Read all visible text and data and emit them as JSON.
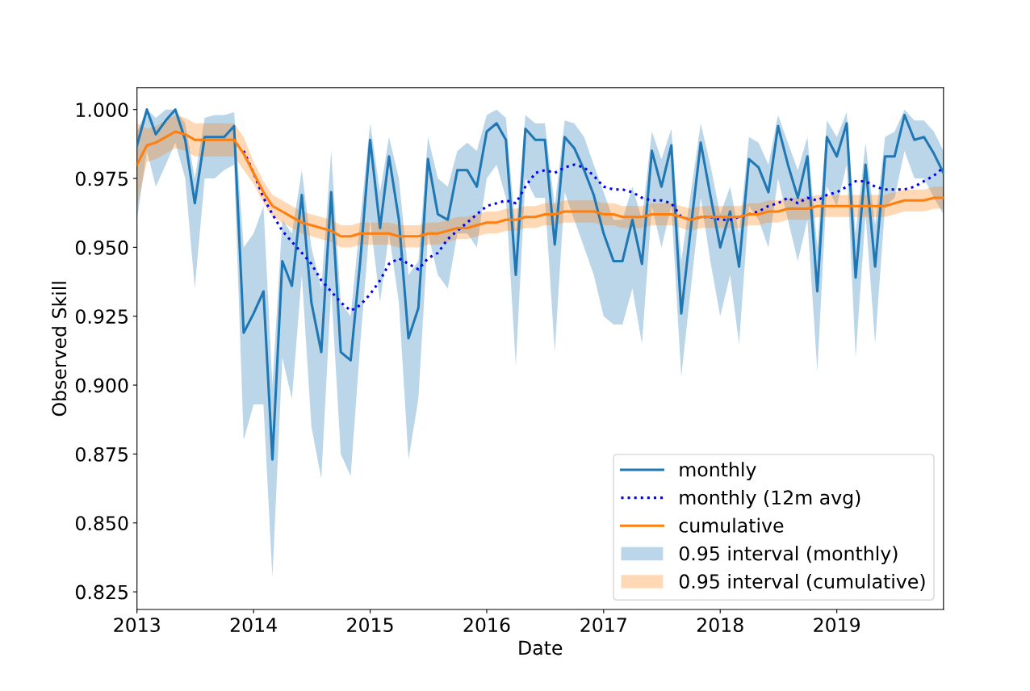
{
  "chart_data": {
    "type": "line",
    "xlabel": "Date",
    "ylabel": "Observed Skill",
    "annotations": [
      "0.95 interval (monthly)",
      "0.95 interval (cumulative)"
    ],
    "x": [
      "2013-01",
      "2013-02",
      "2013-03",
      "2013-04",
      "2013-05",
      "2013-06",
      "2013-07",
      "2013-08",
      "2013-09",
      "2013-10",
      "2013-11",
      "2013-12",
      "2014-01",
      "2014-02",
      "2014-03",
      "2014-04",
      "2014-05",
      "2014-06",
      "2014-07",
      "2014-08",
      "2014-09",
      "2014-10",
      "2014-11",
      "2014-12",
      "2015-01",
      "2015-02",
      "2015-03",
      "2015-04",
      "2015-05",
      "2015-06",
      "2015-07",
      "2015-08",
      "2015-09",
      "2015-10",
      "2015-11",
      "2015-12",
      "2016-01",
      "2016-02",
      "2016-03",
      "2016-04",
      "2016-05",
      "2016-06",
      "2016-07",
      "2016-08",
      "2016-09",
      "2016-10",
      "2016-11",
      "2016-12",
      "2017-01",
      "2017-02",
      "2017-03",
      "2017-04",
      "2017-05",
      "2017-06",
      "2017-07",
      "2017-08",
      "2017-09",
      "2017-10",
      "2017-11",
      "2017-12",
      "2018-01",
      "2018-02",
      "2018-03",
      "2018-04",
      "2018-05",
      "2018-06",
      "2018-07",
      "2018-08",
      "2018-09",
      "2018-10",
      "2018-11",
      "2018-12",
      "2019-01",
      "2019-02",
      "2019-03",
      "2019-04",
      "2019-05",
      "2019-06",
      "2019-07",
      "2019-08",
      "2019-09",
      "2019-10",
      "2019-11",
      "2019-12"
    ],
    "series": [
      {
        "name": "monthly",
        "color": "#1f77b4",
        "line_style": "solid",
        "values": [
          0.987,
          1.0,
          0.991,
          0.996,
          1.0,
          0.989,
          0.966,
          0.99,
          0.99,
          0.99,
          0.994,
          0.919,
          0.926,
          0.934,
          0.873,
          0.945,
          0.936,
          0.969,
          0.93,
          0.912,
          0.97,
          0.912,
          0.909,
          0.945,
          0.989,
          0.957,
          0.983,
          0.96,
          0.917,
          0.928,
          0.982,
          0.962,
          0.96,
          0.978,
          0.978,
          0.972,
          0.992,
          0.995,
          0.989,
          0.94,
          0.993,
          0.989,
          0.989,
          0.951,
          0.99,
          0.986,
          0.978,
          0.969,
          0.955,
          0.945,
          0.945,
          0.96,
          0.944,
          0.985,
          0.972,
          0.987,
          0.926,
          0.957,
          0.988,
          0.969,
          0.95,
          0.963,
          0.943,
          0.982,
          0.979,
          0.97,
          0.994,
          0.98,
          0.968,
          0.983,
          0.934,
          0.99,
          0.983,
          0.995,
          0.939,
          0.98,
          0.943,
          0.983,
          0.983,
          0.998,
          0.989,
          0.99,
          0.984,
          0.977
        ],
        "lower": [
          0.96,
          0.985,
          0.972,
          0.98,
          0.988,
          0.975,
          0.935,
          0.975,
          0.975,
          0.978,
          0.98,
          0.88,
          0.893,
          0.893,
          0.83,
          0.91,
          0.895,
          0.94,
          0.885,
          0.866,
          0.935,
          0.875,
          0.867,
          0.915,
          0.96,
          0.93,
          0.955,
          0.93,
          0.873,
          0.895,
          0.955,
          0.94,
          0.935,
          0.955,
          0.955,
          0.95,
          0.975,
          0.98,
          0.968,
          0.907,
          0.975,
          0.968,
          0.968,
          0.912,
          0.97,
          0.96,
          0.95,
          0.94,
          0.925,
          0.922,
          0.922,
          0.935,
          0.915,
          0.965,
          0.95,
          0.965,
          0.903,
          0.935,
          0.968,
          0.945,
          0.925,
          0.94,
          0.915,
          0.965,
          0.96,
          0.95,
          0.975,
          0.96,
          0.945,
          0.96,
          0.905,
          0.972,
          0.965,
          0.98,
          0.91,
          0.962,
          0.915,
          0.965,
          0.968,
          0.985,
          0.975,
          0.975,
          0.968,
          0.962
        ],
        "upper": [
          0.992,
          1.0,
          0.997,
          1.0,
          1.0,
          0.995,
          0.975,
          0.997,
          0.998,
          0.998,
          0.999,
          0.95,
          0.955,
          0.965,
          0.9,
          0.96,
          0.955,
          0.978,
          0.95,
          0.935,
          0.985,
          0.93,
          0.925,
          0.96,
          0.995,
          0.97,
          0.99,
          0.975,
          0.94,
          0.945,
          0.99,
          0.975,
          0.972,
          0.985,
          0.988,
          0.985,
          0.998,
          1.0,
          0.997,
          0.955,
          0.998,
          0.995,
          0.995,
          0.965,
          0.996,
          0.995,
          0.99,
          0.98,
          0.97,
          0.96,
          0.96,
          0.972,
          0.96,
          0.992,
          0.982,
          0.993,
          0.945,
          0.97,
          0.995,
          0.98,
          0.962,
          0.972,
          0.955,
          0.99,
          0.988,
          0.98,
          0.998,
          0.988,
          0.978,
          0.99,
          0.95,
          0.996,
          0.99,
          0.999,
          0.955,
          0.988,
          0.958,
          0.99,
          0.992,
          1.0,
          0.996,
          0.996,
          0.992,
          0.985
        ]
      },
      {
        "name": "monthly (12m avg)",
        "color": "#0000ff",
        "line_style": "dotted",
        "values": [
          null,
          null,
          null,
          null,
          null,
          null,
          null,
          null,
          null,
          null,
          null,
          0.985,
          0.977,
          0.968,
          0.962,
          0.956,
          0.952,
          0.948,
          0.944,
          0.938,
          0.934,
          0.93,
          0.927,
          0.929,
          0.933,
          0.938,
          0.944,
          0.946,
          0.944,
          0.942,
          0.946,
          0.948,
          0.953,
          0.956,
          0.959,
          0.962,
          0.965,
          0.966,
          0.967,
          0.966,
          0.972,
          0.977,
          0.978,
          0.977,
          0.979,
          0.98,
          0.979,
          0.976,
          0.972,
          0.971,
          0.971,
          0.97,
          0.968,
          0.967,
          0.967,
          0.966,
          0.961,
          0.96,
          0.961,
          0.961,
          0.96,
          0.96,
          0.961,
          0.962,
          0.963,
          0.965,
          0.966,
          0.968,
          0.966,
          0.968,
          0.967,
          0.969,
          0.97,
          0.972,
          0.974,
          0.974,
          0.972,
          0.971,
          0.971,
          0.971,
          0.972,
          0.974,
          0.976,
          0.979
        ]
      },
      {
        "name": "cumulative",
        "color": "#ff7f0e",
        "line_style": "solid",
        "values": [
          0.98,
          0.987,
          0.988,
          0.99,
          0.992,
          0.991,
          0.989,
          0.989,
          0.989,
          0.989,
          0.989,
          0.984,
          0.977,
          0.97,
          0.965,
          0.963,
          0.961,
          0.959,
          0.958,
          0.957,
          0.956,
          0.954,
          0.954,
          0.955,
          0.955,
          0.955,
          0.955,
          0.954,
          0.954,
          0.954,
          0.955,
          0.955,
          0.956,
          0.957,
          0.957,
          0.958,
          0.959,
          0.959,
          0.96,
          0.96,
          0.961,
          0.961,
          0.962,
          0.962,
          0.963,
          0.963,
          0.963,
          0.963,
          0.962,
          0.962,
          0.961,
          0.961,
          0.961,
          0.962,
          0.962,
          0.962,
          0.961,
          0.96,
          0.961,
          0.961,
          0.961,
          0.961,
          0.961,
          0.962,
          0.962,
          0.963,
          0.963,
          0.964,
          0.964,
          0.964,
          0.965,
          0.965,
          0.965,
          0.965,
          0.965,
          0.965,
          0.965,
          0.965,
          0.966,
          0.967,
          0.967,
          0.967,
          0.968,
          0.968
        ],
        "lower": [
          0.965,
          0.981,
          0.982,
          0.984,
          0.986,
          0.985,
          0.983,
          0.983,
          0.983,
          0.983,
          0.983,
          0.978,
          0.973,
          0.966,
          0.961,
          0.959,
          0.957,
          0.955,
          0.954,
          0.953,
          0.952,
          0.95,
          0.95,
          0.951,
          0.951,
          0.951,
          0.951,
          0.95,
          0.95,
          0.95,
          0.951,
          0.951,
          0.952,
          0.953,
          0.953,
          0.954,
          0.955,
          0.955,
          0.956,
          0.956,
          0.957,
          0.957,
          0.958,
          0.958,
          0.959,
          0.959,
          0.959,
          0.959,
          0.958,
          0.958,
          0.957,
          0.957,
          0.957,
          0.958,
          0.958,
          0.958,
          0.957,
          0.956,
          0.957,
          0.957,
          0.957,
          0.957,
          0.957,
          0.958,
          0.958,
          0.959,
          0.959,
          0.96,
          0.96,
          0.96,
          0.961,
          0.961,
          0.961,
          0.961,
          0.961,
          0.961,
          0.961,
          0.961,
          0.962,
          0.963,
          0.963,
          0.963,
          0.964,
          0.964
        ],
        "upper": [
          0.995,
          0.993,
          0.994,
          0.996,
          0.998,
          0.997,
          0.995,
          0.995,
          0.995,
          0.995,
          0.995,
          0.99,
          0.981,
          0.974,
          0.969,
          0.967,
          0.965,
          0.963,
          0.962,
          0.961,
          0.96,
          0.958,
          0.958,
          0.959,
          0.959,
          0.959,
          0.959,
          0.958,
          0.958,
          0.958,
          0.959,
          0.959,
          0.96,
          0.961,
          0.961,
          0.962,
          0.963,
          0.963,
          0.964,
          0.964,
          0.965,
          0.965,
          0.966,
          0.966,
          0.967,
          0.967,
          0.967,
          0.967,
          0.966,
          0.966,
          0.965,
          0.965,
          0.965,
          0.966,
          0.966,
          0.966,
          0.965,
          0.964,
          0.965,
          0.965,
          0.965,
          0.965,
          0.965,
          0.966,
          0.966,
          0.967,
          0.967,
          0.968,
          0.968,
          0.968,
          0.969,
          0.969,
          0.969,
          0.969,
          0.969,
          0.969,
          0.969,
          0.969,
          0.97,
          0.971,
          0.971,
          0.971,
          0.972,
          0.972
        ]
      }
    ],
    "xlim": [
      "2013-01",
      "2019-12"
    ],
    "xticks": [
      "2013",
      "2014",
      "2015",
      "2016",
      "2017",
      "2018",
      "2019"
    ],
    "ylim": [
      0.8186,
      1.0079
    ],
    "yticks": [
      {
        "value": 0.825,
        "label": "0.825"
      },
      {
        "value": 0.85,
        "label": "0.850"
      },
      {
        "value": 0.875,
        "label": "0.875"
      },
      {
        "value": 0.9,
        "label": "0.900"
      },
      {
        "value": 0.925,
        "label": "0.925"
      },
      {
        "value": 0.95,
        "label": "0.950"
      },
      {
        "value": 0.975,
        "label": "0.975"
      },
      {
        "value": 1.0,
        "label": "1.000"
      }
    ],
    "grid": false,
    "legend": "bottom right",
    "marker": "none"
  }
}
